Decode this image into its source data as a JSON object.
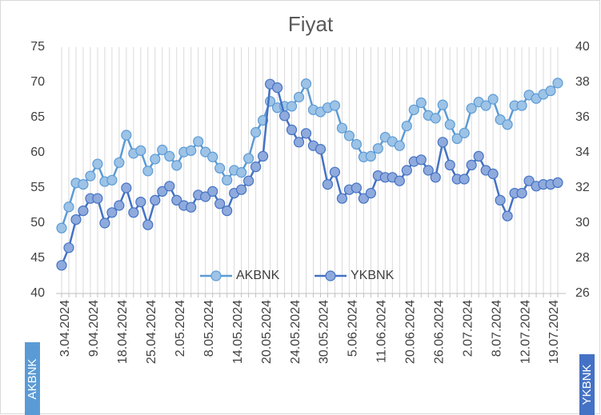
{
  "chart_data": {
    "type": "line",
    "title": "Fiyat",
    "y_axis_label": "AKBNK",
    "y2_axis_label": "YKBNK",
    "categories": [
      "3.04.2024",
      null,
      null,
      null,
      "9.04.2024",
      null,
      null,
      null,
      "18.04.2024",
      null,
      null,
      null,
      "25.04.2024",
      null,
      null,
      null,
      "2.05.2024",
      null,
      null,
      null,
      "8.05.2024",
      null,
      null,
      null,
      "14.05.2024",
      null,
      null,
      null,
      "20.05.2024",
      null,
      null,
      null,
      "24.05.2024",
      null,
      null,
      null,
      "30.05.2024",
      null,
      null,
      null,
      "5.06.2024",
      null,
      null,
      null,
      "11.06.2024",
      null,
      null,
      null,
      "20.06.2024",
      null,
      null,
      null,
      "26.06.2024",
      null,
      null,
      null,
      "2.07.2024",
      null,
      null,
      null,
      "8.07.2024",
      null,
      null,
      null,
      "12.07.2024",
      null,
      null,
      null,
      "19.07.2024",
      null
    ],
    "series": [
      {
        "name": "AKBNK",
        "color": "#5b9bd5",
        "marker_color": "#9dc3e6",
        "axis": "y",
        "values": [
          49.3,
          52.3,
          55.7,
          55.5,
          56.7,
          58.4,
          55.9,
          56.1,
          58.6,
          62.5,
          59.9,
          60.3,
          57.4,
          59.1,
          60.4,
          59.5,
          58.2,
          60.1,
          60.3,
          61.6,
          60.1,
          59.4,
          57.8,
          56.1,
          57.5,
          57.2,
          59.2,
          62.9,
          64.6,
          67.3,
          66.4,
          66.6,
          66.6,
          67.9,
          69.8,
          66.1,
          65.8,
          66.4,
          66.7,
          63.5,
          62.4,
          61.2,
          59.4,
          59.5,
          60.6,
          62.2,
          61.6,
          61.0,
          63.8,
          66.1,
          67.1,
          65.3,
          64.9,
          66.8,
          64.0,
          62.0,
          62.8,
          66.3,
          67.2,
          66.7,
          67.6,
          64.7,
          64.0,
          66.7,
          66.7,
          68.2,
          67.7,
          68.3,
          68.8,
          69.9
        ]
      },
      {
        "name": "YKBNK",
        "color": "#4472c4",
        "marker_color": "#8faadc",
        "axis": "y2",
        "values": [
          27.6,
          28.6,
          30.2,
          30.7,
          31.4,
          31.4,
          30.0,
          30.6,
          31.0,
          32.0,
          30.6,
          31.2,
          29.9,
          31.3,
          31.8,
          32.1,
          31.3,
          31.0,
          30.9,
          31.6,
          31.5,
          31.8,
          31.1,
          30.7,
          31.7,
          31.9,
          32.4,
          33.2,
          33.8,
          37.9,
          37.7,
          36.1,
          35.3,
          34.6,
          35.1,
          34.4,
          34.2,
          32.2,
          32.9,
          31.4,
          31.9,
          32.0,
          31.4,
          31.7,
          32.7,
          32.6,
          32.6,
          32.4,
          33.0,
          33.5,
          33.6,
          33.0,
          32.6,
          34.6,
          33.3,
          32.5,
          32.5,
          33.3,
          33.8,
          33.0,
          32.8,
          31.3,
          30.4,
          31.7,
          31.7,
          32.4,
          32.1,
          32.2,
          32.2,
          32.3
        ]
      }
    ],
    "ylim": [
      40,
      75
    ],
    "yticks": [
      40,
      45,
      50,
      55,
      60,
      65,
      70,
      75
    ],
    "y2lim": [
      26,
      40
    ],
    "y2ticks": [
      26,
      28,
      30,
      32,
      34,
      36,
      38,
      40
    ],
    "grid": "vertical",
    "legend": "bottom"
  }
}
